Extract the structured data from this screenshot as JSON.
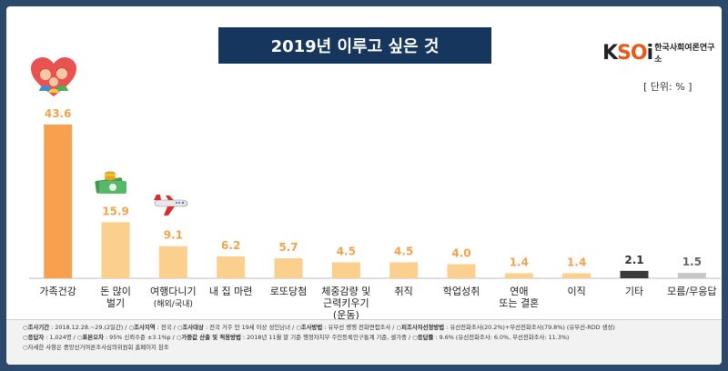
{
  "title": "2019년 이루고 싶은 것",
  "logo": {
    "mark_k": "K",
    "mark_so": "SO",
    "mark_i": "i",
    "text": "한국사회여론연구소"
  },
  "unit": "[ 단위: % ]",
  "colors": {
    "main": "#f7a04e",
    "light": "#fbd08e",
    "other": "#3a3a3a",
    "dk": "#c6c6c6",
    "value": "#f4a24b",
    "title_bg": "#17365d"
  },
  "chart_data": {
    "type": "bar",
    "categories": [
      [
        "가족건강"
      ],
      [
        "돈 많이",
        "벌기"
      ],
      [
        "여행다니기",
        "(해외/국내)"
      ],
      [
        "내 집 마련"
      ],
      [
        "로또당첨"
      ],
      [
        "체중감량 및",
        "근력키우기",
        "(운동)"
      ],
      [
        "취직"
      ],
      [
        "학업성취"
      ],
      [
        "연애",
        "또는 결혼"
      ],
      [
        "이직"
      ],
      [
        "기타"
      ],
      [
        "모름/무응답"
      ]
    ],
    "values": [
      43.6,
      15.9,
      9.1,
      6.2,
      5.7,
      4.5,
      4.5,
      4.0,
      1.4,
      1.4,
      2.1,
      1.5
    ],
    "value_labels": [
      "43.6",
      "15.9",
      "9.1",
      "6.2",
      "5.7",
      "4.5",
      "4.5",
      "4.0",
      "1.4",
      "1.4",
      "2.1",
      "1.5"
    ],
    "bar_colors": [
      "main",
      "light",
      "light",
      "light",
      "light",
      "light",
      "light",
      "light",
      "light",
      "light",
      "other",
      "dk"
    ],
    "ylim": [
      0,
      45
    ]
  },
  "footer": {
    "line1": [
      {
        "k": "조사기간",
        "v": " : 2018.12.28.~29.(2일간)  /  "
      },
      {
        "k": "조사지역",
        "v": " : 전국  /  "
      },
      {
        "k": "조사대상",
        "v": " : 전국 거주 만 19세 이상 성인남녀  /  "
      },
      {
        "k": "조사방법",
        "v": " : 유무선 병행 전화면접조사  /  "
      },
      {
        "k": "피조사자선정방법",
        "v": " : 유선전화조사(20.2%)+무선전화조사(79.8%) (유무선-RDD 생성)"
      }
    ],
    "line2": [
      {
        "k": "응답자",
        "v": " : 1,024명  /  "
      },
      {
        "k": "표본오차",
        "v": " : 95% 신뢰수준 ±3.1%p  /  "
      },
      {
        "k": "가중값 산출 및 적용방법",
        "v": " : 2018년 11월 말 기준 행정자치부 주민등록인구통계 기준, 셀가중  /  "
      },
      {
        "k": "응답률",
        "v": " : 9.6% (유선전화조사: 6.0%, 무선전화조사: 11.3%)"
      }
    ],
    "line3": "자세한 사항은 중앙선거여론조사심의위원회 홈페이지 참조"
  },
  "icons": [
    "heart-family-icon",
    "money-icon",
    "airplane-icon"
  ]
}
